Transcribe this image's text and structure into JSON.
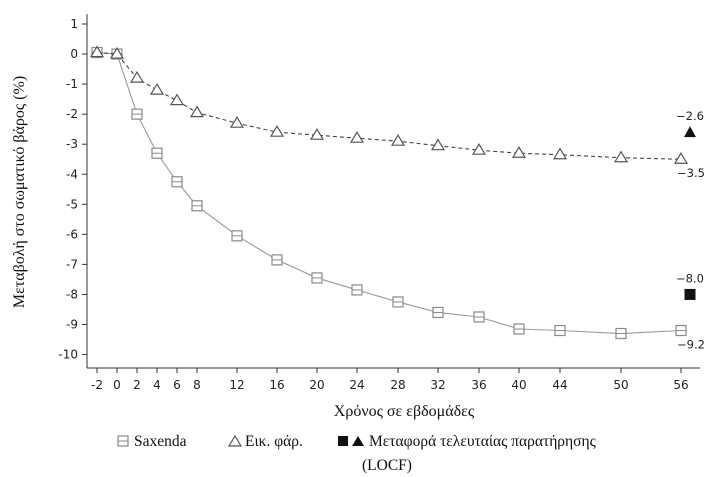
{
  "chart_data": {
    "type": "line",
    "ylabel": "Μεταβολή στο σωματικό βάρος (%)",
    "xlabel": "Χρόνος σε εβδομάδες",
    "ylim": [
      -10,
      1
    ],
    "yticks": [
      1,
      0,
      -1,
      -2,
      -3,
      -4,
      -5,
      -6,
      -7,
      -8,
      -9,
      -10
    ],
    "xticks": [
      -2,
      0,
      2,
      4,
      6,
      8,
      12,
      16,
      20,
      24,
      28,
      32,
      36,
      40,
      44,
      50,
      56
    ],
    "grid": false,
    "legend_position": "bottom",
    "series": [
      {
        "name": "Saxenda",
        "marker": "open-square",
        "line_style": "solid",
        "color": "#888888",
        "x": [
          -2,
          0,
          2,
          4,
          6,
          8,
          12,
          16,
          20,
          24,
          28,
          32,
          36,
          40,
          44,
          50,
          56
        ],
        "y": [
          0.05,
          0.0,
          -2.0,
          -3.3,
          -4.25,
          -5.05,
          -6.05,
          -6.85,
          -7.45,
          -7.85,
          -8.25,
          -8.6,
          -8.75,
          -9.15,
          -9.2,
          -9.3,
          -9.2
        ]
      },
      {
        "name": "Εικ. φάρ.",
        "marker": "open-triangle",
        "line_style": "dashed",
        "color": "#555555",
        "x": [
          -2,
          0,
          2,
          4,
          6,
          8,
          12,
          16,
          20,
          24,
          28,
          32,
          36,
          40,
          44,
          50,
          56
        ],
        "y": [
          0.05,
          0.0,
          -0.8,
          -1.2,
          -1.55,
          -1.95,
          -2.3,
          -2.6,
          -2.7,
          -2.8,
          -2.9,
          -3.05,
          -3.2,
          -3.3,
          -3.35,
          -3.45,
          -3.5
        ]
      }
    ],
    "locf": {
      "legend_label": "Μεταφορά τελευταίας παρατήρησης",
      "legend_label_line2": "(LOCF)",
      "points": [
        {
          "series": "Saxenda",
          "marker": "filled-square",
          "y": -8.0,
          "label": "−8.0"
        },
        {
          "series": "Εικ. φάρ.",
          "marker": "filled-triangle",
          "y": -2.6,
          "label": "−2.6"
        }
      ]
    },
    "end_labels": [
      {
        "series": "Saxenda",
        "y": -9.2,
        "label": "−9.2"
      },
      {
        "series": "Εικ. φάρ.",
        "y": -3.5,
        "label": "−3.5"
      }
    ]
  }
}
